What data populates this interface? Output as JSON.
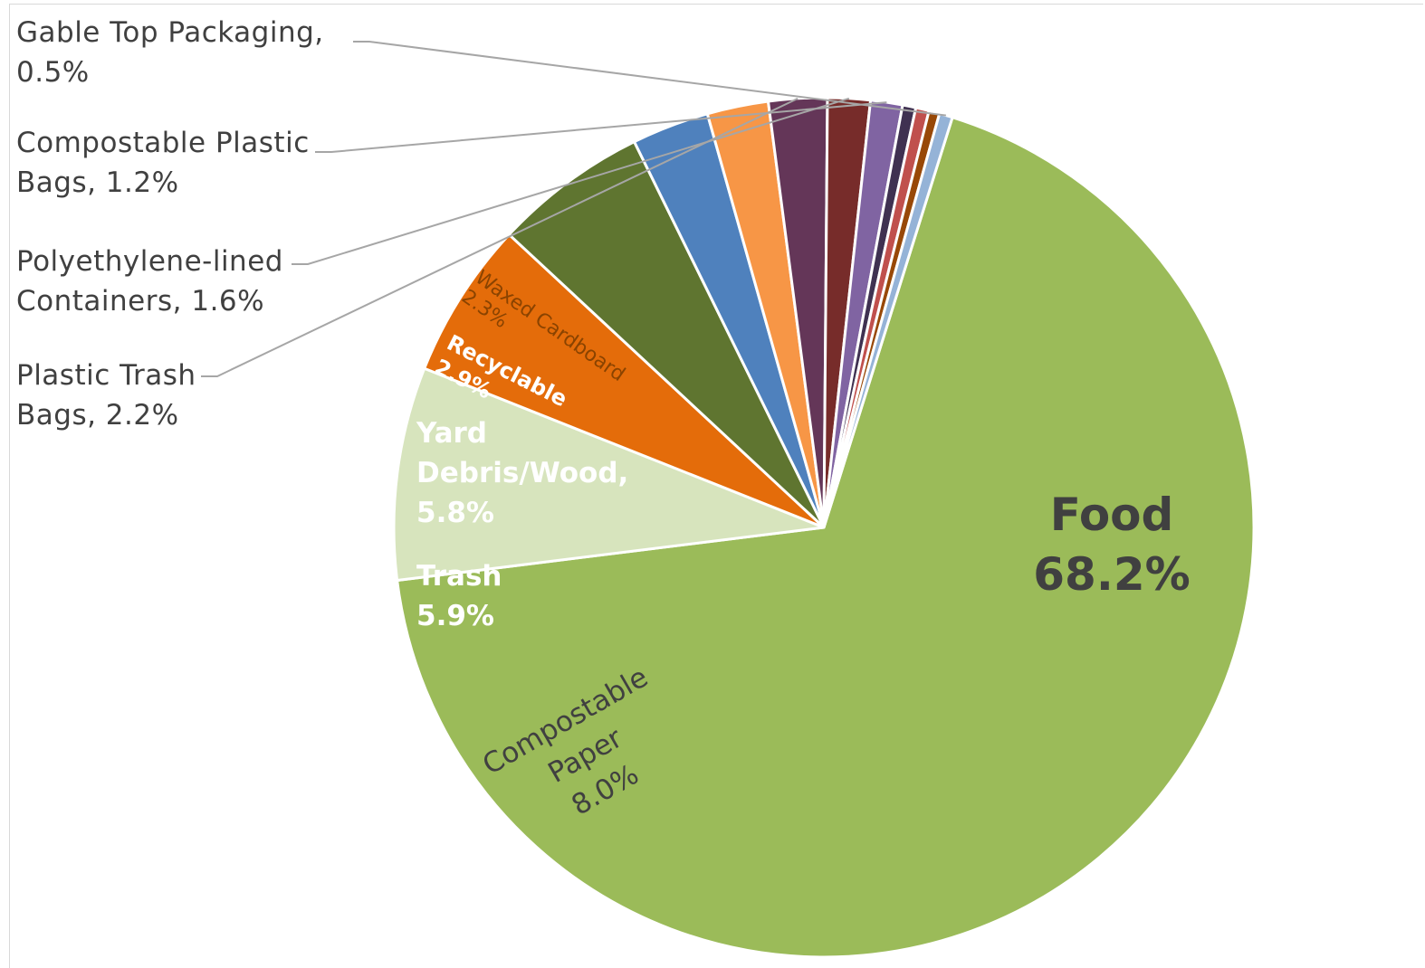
{
  "chart_data": {
    "type": "pie",
    "title": "",
    "start_angle_deg": 17.4,
    "slices": [
      {
        "name": "Food",
        "value": 68.2,
        "label": [
          "Food",
          "68.2%"
        ],
        "color": "#9bbb59",
        "label_color": "#404040"
      },
      {
        "name": "Compostable Paper",
        "value": 8.0,
        "label": [
          "Compostable",
          "Paper",
          "8.0%"
        ],
        "color": "#d7e4bd",
        "label_color": "#404040"
      },
      {
        "name": "Trash",
        "value": 5.9,
        "label": [
          "Trash",
          "5.9%"
        ],
        "color": "#e46c0a",
        "label_color": "#ffffff"
      },
      {
        "name": "Yard Debris/Wood",
        "value": 5.8,
        "label": [
          "Yard",
          "Debris/Wood,",
          "5.8%"
        ],
        "color": "#5f7530",
        "label_color": "#ffffff"
      },
      {
        "name": "Recyclable",
        "value": 2.9,
        "label": [
          "Recyclable",
          "2.9%"
        ],
        "color": "#4f81bd",
        "label_color": "#ffffff"
      },
      {
        "name": "Waxed Cardboard",
        "value": 2.3,
        "label": [
          "Waxed Cardboard",
          "2.3%"
        ],
        "color": "#f79646",
        "label_color": "#8a4300"
      },
      {
        "name": "Plastic Trash Bags",
        "value": 2.2,
        "label": [
          "Plastic Trash",
          "Bags, 2.2%"
        ],
        "color": "#643658",
        "label_color": "#404040"
      },
      {
        "name": "Polyethylene-lined Containers",
        "value": 1.6,
        "label": [
          "Polyethylene-lined",
          "Containers, 1.6%"
        ],
        "color": "#772c2a",
        "label_color": "#404040"
      },
      {
        "name": "Compostable Plastic Bags",
        "value": 1.2,
        "label": [
          "Compostable Plastic",
          "Bags, 1.2%"
        ],
        "color": "#8064a2",
        "label_color": "#404040"
      },
      {
        "name": "Unlabeled A",
        "value": 0.5,
        "label": [],
        "color": "#3f3151",
        "label_color": "#404040"
      },
      {
        "name": "Unlabeled B",
        "value": 0.5,
        "label": [],
        "color": "#c0504d",
        "label_color": "#404040"
      },
      {
        "name": "Unlabeled C",
        "value": 0.4,
        "label": [],
        "color": "#984807",
        "label_color": "#404040"
      },
      {
        "name": "Gable Top Packaging",
        "value": 0.5,
        "label": [
          "Gable Top Packaging,",
          "0.5%"
        ],
        "color": "#95b3d7",
        "label_color": "#404040"
      }
    ],
    "legend": "none"
  }
}
